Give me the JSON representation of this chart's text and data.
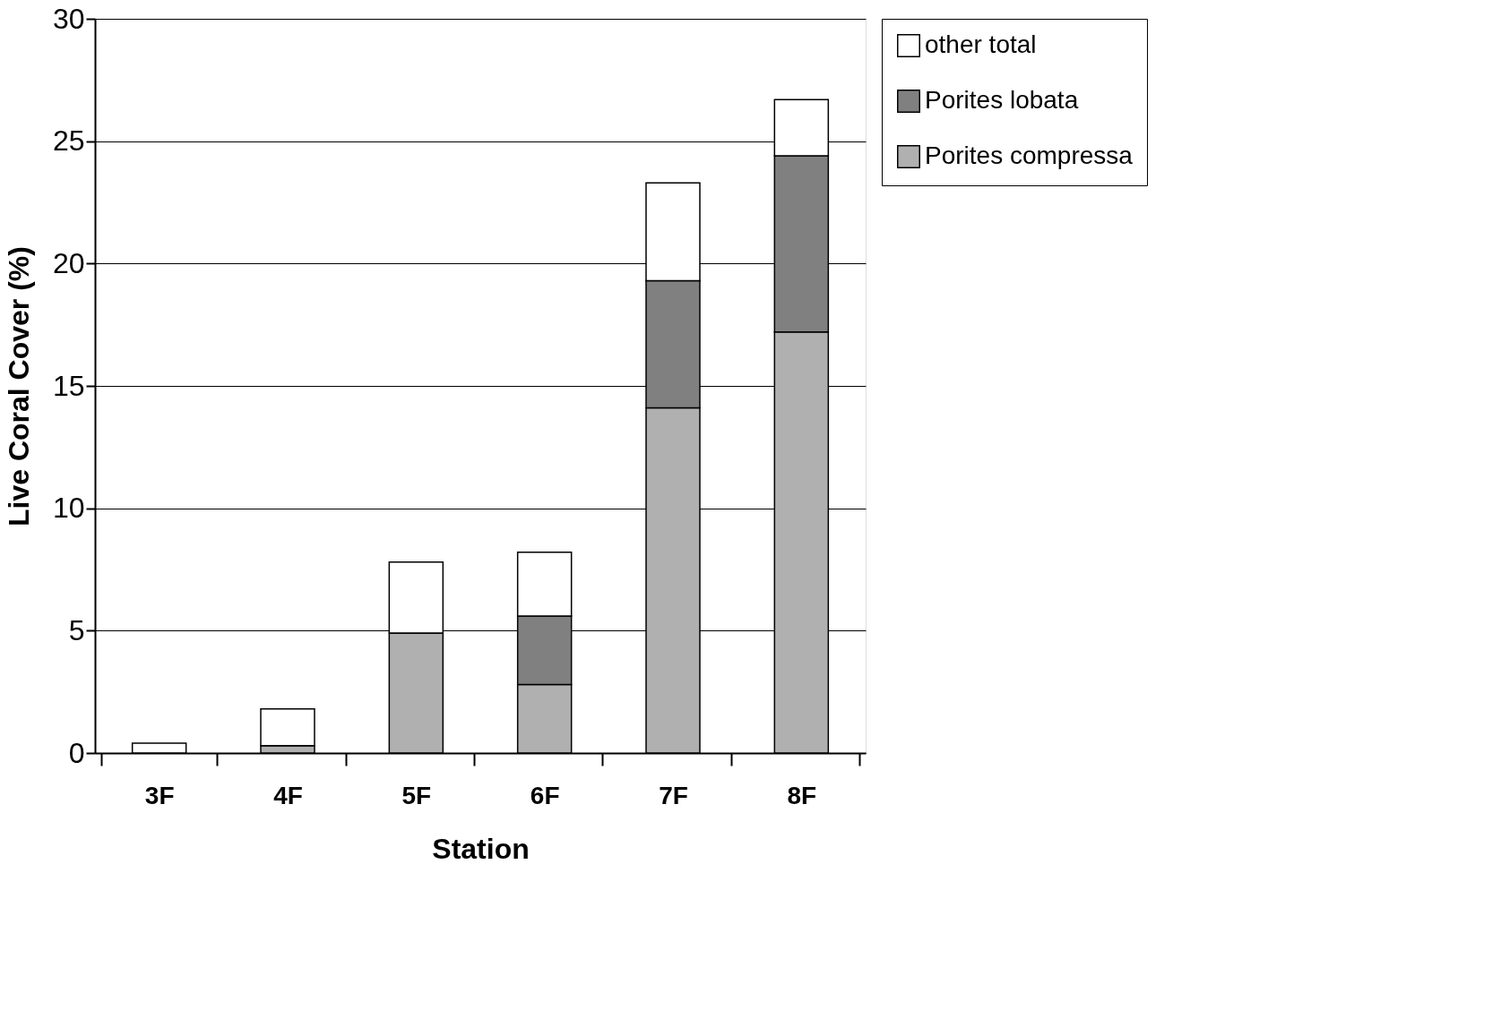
{
  "chart_data": {
    "type": "bar",
    "stacked": true,
    "xlabel": "Station",
    "ylabel": "Live Coral Cover (%)",
    "categories": [
      "3F",
      "4F",
      "5F",
      "6F",
      "7F",
      "8F"
    ],
    "series": [
      {
        "name": "Porites compressa",
        "color": "#b0b0b0",
        "values": [
          0,
          0.3,
          4.9,
          2.8,
          14.1,
          17.2
        ]
      },
      {
        "name": "Porites lobata",
        "color": "#808080",
        "values": [
          0,
          0,
          0,
          2.8,
          5.2,
          7.2
        ]
      },
      {
        "name": "other total",
        "color": "#ffffff",
        "values": [
          0.4,
          1.5,
          2.9,
          2.6,
          4.0,
          2.3
        ]
      }
    ],
    "ylim": [
      0,
      30
    ],
    "yticks": [
      0,
      5,
      10,
      15,
      20,
      25,
      30
    ],
    "grid": "y",
    "legend": "right"
  }
}
